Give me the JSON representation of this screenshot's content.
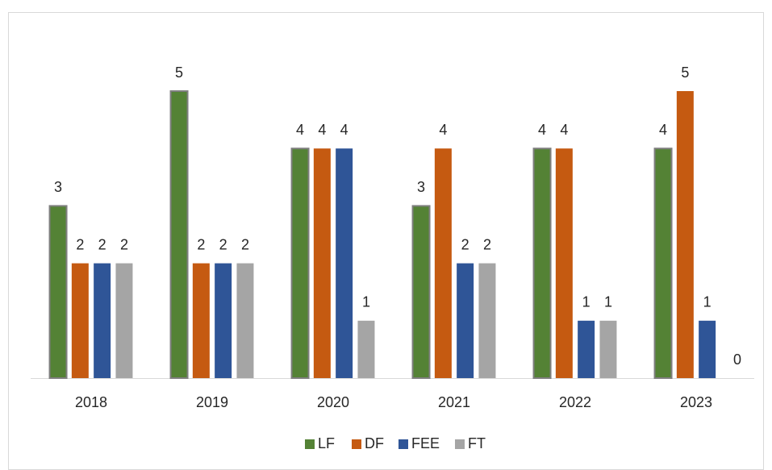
{
  "chart_data": {
    "type": "bar",
    "categories": [
      "2018",
      "2019",
      "2020",
      "2021",
      "2022",
      "2023"
    ],
    "series": [
      {
        "name": "LF",
        "color": "#548235",
        "values": [
          3,
          5,
          4,
          3,
          4,
          4
        ]
      },
      {
        "name": "DF",
        "color": "#c55a11",
        "values": [
          2,
          2,
          4,
          4,
          4,
          5
        ]
      },
      {
        "name": "FEE",
        "color": "#2f5597",
        "values": [
          2,
          2,
          4,
          2,
          1,
          1
        ]
      },
      {
        "name": "FT",
        "color": "#a5a5a5",
        "values": [
          2,
          2,
          1,
          2,
          1,
          0
        ]
      }
    ],
    "ylim": [
      0,
      5
    ],
    "legend": "bottom"
  }
}
